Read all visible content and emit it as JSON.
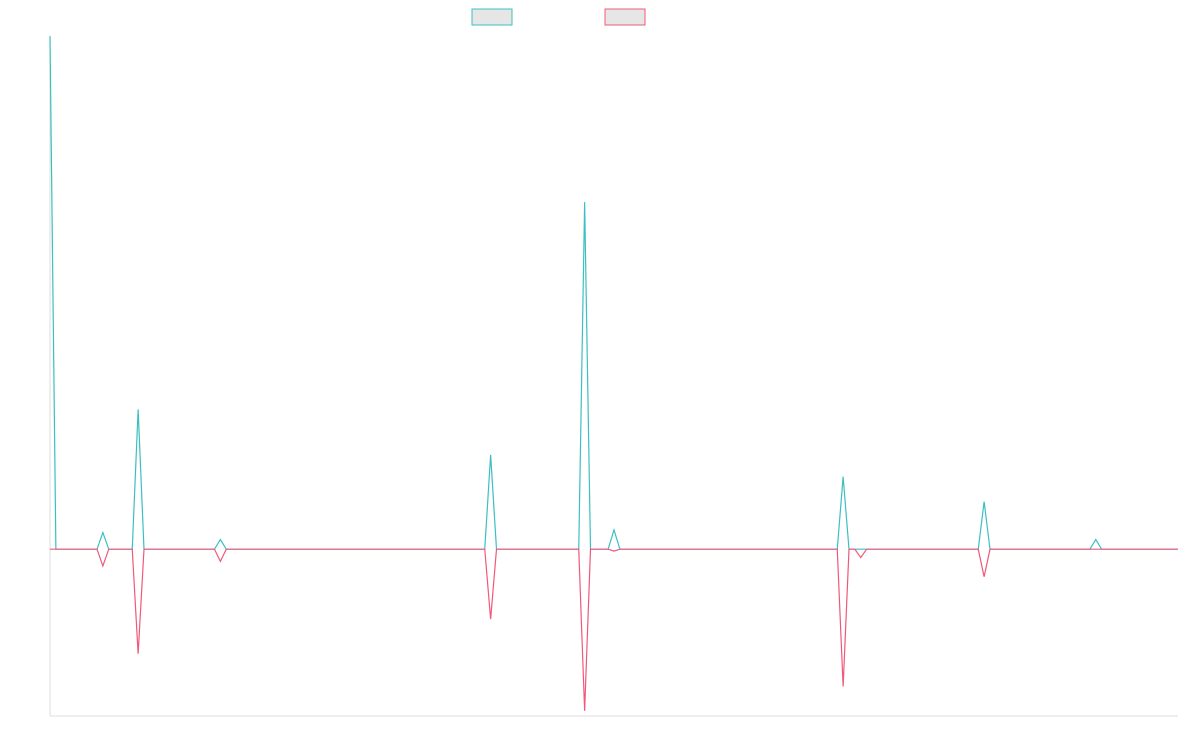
{
  "chart_data": {
    "type": "line",
    "colors": {
      "series_a": "#3cbfc0",
      "series_b": "#f0587a",
      "legend_fill": "#e6e6e6",
      "axis": "#dddddd"
    },
    "legend": {
      "placement": "top-center",
      "entries": [
        {
          "name": ""
        },
        {
          "name": ""
        }
      ]
    },
    "x_count": 97,
    "ylim": [
      -26,
      80
    ],
    "grid": false,
    "series": [
      {
        "name": "",
        "points": [
          [
            0,
            80
          ],
          [
            0.5,
            0
          ],
          [
            4.5,
            2.6
          ],
          [
            7.5,
            21.8
          ],
          [
            14.5,
            1.5
          ],
          [
            37.5,
            14.7
          ],
          [
            45.5,
            54.1
          ],
          [
            48,
            3.0
          ],
          [
            67.5,
            11.3
          ],
          [
            69,
            0
          ],
          [
            79.5,
            7.4
          ],
          [
            89,
            1.5
          ],
          [
            96,
            0
          ]
        ]
      },
      {
        "name": "",
        "points": [
          [
            0,
            0
          ],
          [
            4.5,
            -2.6
          ],
          [
            7.5,
            -16.3
          ],
          [
            14.5,
            -1.9
          ],
          [
            37.5,
            -10.9
          ],
          [
            45.5,
            -25.2
          ],
          [
            48,
            -0.3
          ],
          [
            67.5,
            -21.4
          ],
          [
            69,
            -1.3
          ],
          [
            79.5,
            -4.3
          ],
          [
            96,
            0
          ]
        ]
      }
    ]
  }
}
